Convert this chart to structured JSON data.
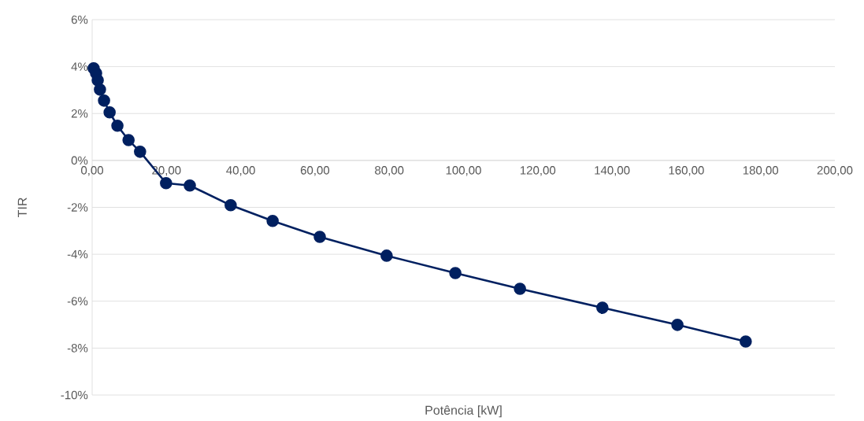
{
  "chart_data": {
    "type": "line",
    "xlabel": "Potência [kW]",
    "ylabel": "TIR",
    "x": [
      0.4,
      1.06,
      1.5,
      2.1,
      3.2,
      4.7,
      6.8,
      9.8,
      12.9,
      19.9,
      26.3,
      37.3,
      48.6,
      61.3,
      79.3,
      97.8,
      115.2,
      137.4,
      157.6,
      176.0
    ],
    "series": [
      {
        "color": "#002060",
        "values": [
          3.93,
          3.72,
          3.42,
          3.02,
          2.55,
          2.05,
          1.48,
          0.87,
          0.37,
          -0.97,
          -1.07,
          -1.91,
          -2.58,
          -3.26,
          -4.06,
          -4.8,
          -5.47,
          -6.28,
          -7.01,
          -7.72
        ]
      }
    ],
    "xlim": [
      0,
      200
    ],
    "ylim": [
      -10,
      6
    ],
    "xticks": [
      {
        "value": 0,
        "label": "0,00"
      },
      {
        "value": 20,
        "label": "20,00"
      },
      {
        "value": 40,
        "label": "40,00"
      },
      {
        "value": 60,
        "label": "60,00"
      },
      {
        "value": 80,
        "label": "80,00"
      },
      {
        "value": 100,
        "label": "100,00"
      },
      {
        "value": 120,
        "label": "120,00"
      },
      {
        "value": 140,
        "label": "140,00"
      },
      {
        "value": 160,
        "label": "160,00"
      },
      {
        "value": 180,
        "label": "180,00"
      },
      {
        "value": 200,
        "label": "200,00"
      }
    ],
    "yticks": [
      {
        "value": -10,
        "label": "-10%"
      },
      {
        "value": -8,
        "label": "-8%"
      },
      {
        "value": -6,
        "label": "-6%"
      },
      {
        "value": -4,
        "label": "-4%"
      },
      {
        "value": -2,
        "label": "-2%"
      },
      {
        "value": 0,
        "label": "0%"
      },
      {
        "value": 2,
        "label": "2%"
      },
      {
        "value": 4,
        "label": "4%"
      },
      {
        "value": 6,
        "label": "6%"
      }
    ],
    "grid": "y",
    "marker": "circle",
    "line_style": "solid"
  }
}
